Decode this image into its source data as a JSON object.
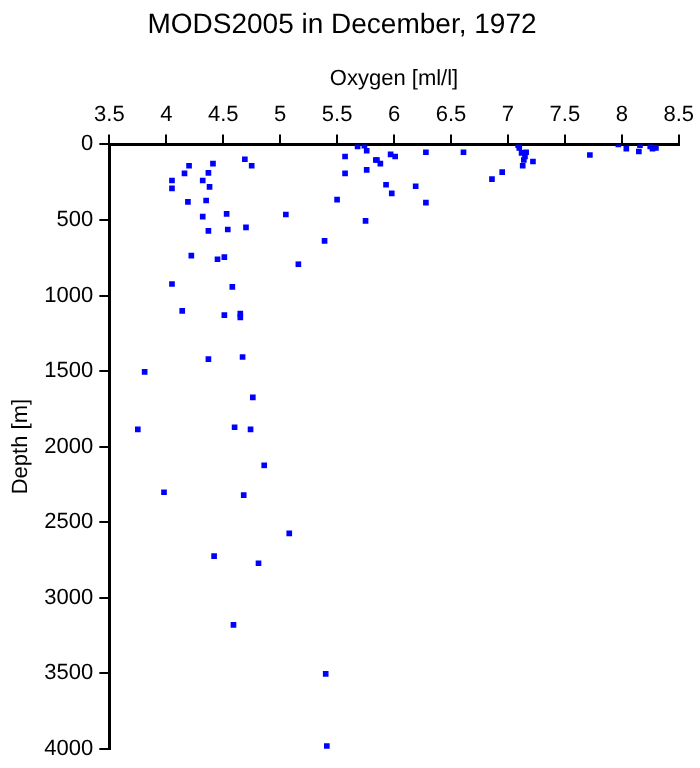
{
  "chart_data": {
    "type": "scatter",
    "title": "MODS2005 in December, 1972",
    "xlabel": "Oxygen [ml/l]",
    "ylabel": "Depth [m]",
    "xlim": [
      3.5,
      8.5
    ],
    "xticks": [
      3.5,
      4,
      4.5,
      5,
      5.5,
      6,
      6.5,
      7,
      7.5,
      8,
      8.5
    ],
    "ylim": [
      4000,
      0
    ],
    "yticks": [
      0,
      500,
      1000,
      1500,
      2000,
      2500,
      3000,
      3500,
      4000
    ],
    "grid": false,
    "legend": false,
    "marker": "square",
    "series": [
      {
        "color": "#0000ff",
        "x": [
          4.05,
          4.05,
          4.16,
          4.2,
          4.19,
          4.32,
          4.37,
          4.41,
          4.38,
          4.35,
          4.32,
          4.37,
          4.53,
          4.54,
          4.69,
          4.75,
          4.7,
          5.05,
          5.39,
          5.16,
          4.22,
          4.45,
          4.51,
          4.05,
          4.58,
          4.14,
          4.51,
          4.65,
          4.65,
          5.57,
          5.57,
          5.5,
          5.75,
          5.76,
          5.68,
          5.74,
          5.76,
          5.84,
          5.85,
          5.88,
          5.97,
          6.01,
          5.93,
          5.98,
          6.19,
          6.28,
          6.28,
          6.61,
          6.86,
          6.95,
          7.09,
          7.1,
          7.12,
          7.16,
          7.15,
          7.14,
          7.13,
          7.22,
          7.72,
          7.97,
          8.04,
          8.15,
          8.16,
          8.25,
          8.27,
          8.3,
          3.81,
          4.37,
          4.67,
          4.76,
          3.75,
          4.6,
          4.74,
          4.86,
          3.98,
          4.68,
          5.08,
          4.42,
          4.81,
          4.59,
          5.4,
          5.41
        ],
        "values": [
          239,
          291,
          192,
          141,
          380,
          239,
          188,
          127,
          281,
          371,
          478,
          572,
          460,
          563,
          98,
          141,
          549,
          464,
          638,
          793,
          736,
          760,
          746,
          924,
          943,
          1102,
          1130,
          1120,
          1145,
          80,
          192,
          366,
          506,
          169,
          14,
          9,
          42,
          103,
          103,
          127,
          66,
          80,
          267,
          324,
          277,
          385,
          52,
          52,
          230,
          183,
          5,
          23,
          56,
          52,
          80,
          103,
          141,
          113,
          70,
          0,
          28,
          47,
          5,
          14,
          28,
          23,
          1505,
          1421,
          1407,
          1674,
          1886,
          1872,
          1886,
          2124,
          2302,
          2321,
          2574,
          2725,
          2772,
          3180,
          3504,
          3982
        ]
      }
    ]
  }
}
